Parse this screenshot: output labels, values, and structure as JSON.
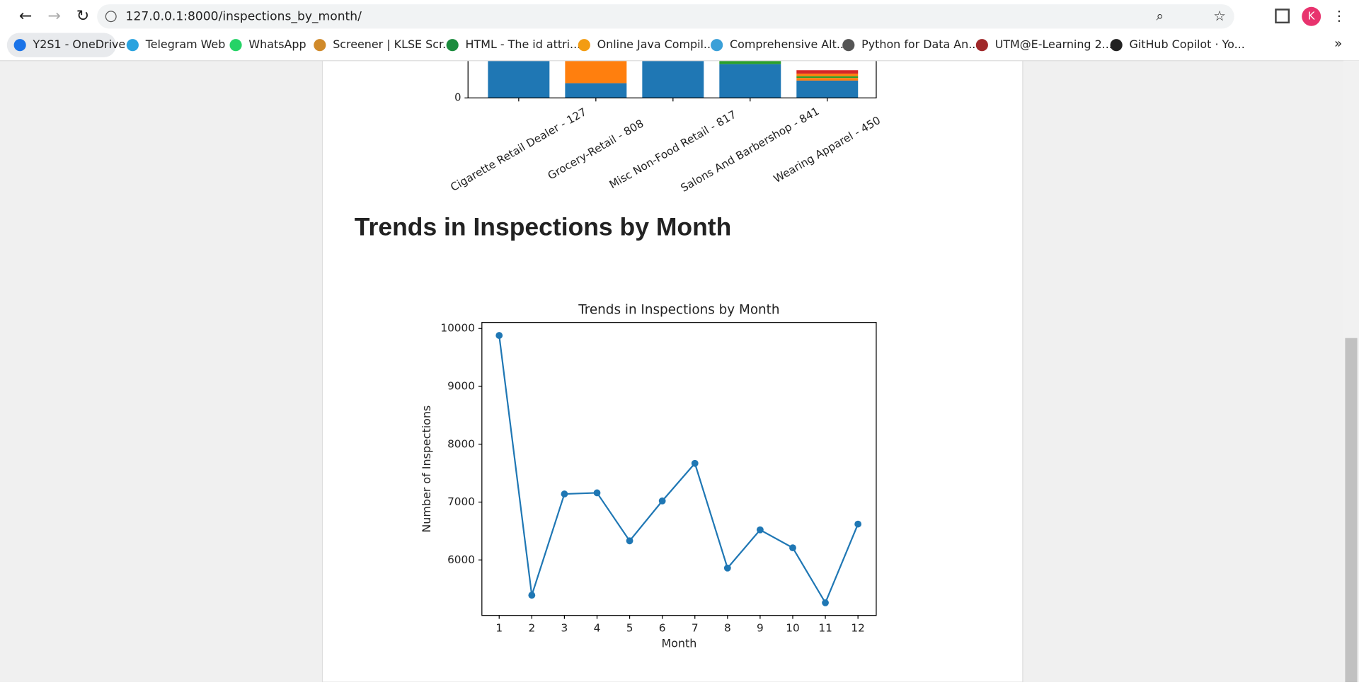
{
  "browser": {
    "url": "127.0.0.1:8000/inspections_by_month/",
    "bookmarks": [
      "Y2S1 - OneDrive",
      "Telegram Web",
      "WhatsApp",
      "Screener | KLSE Scr...",
      "HTML - The id attri...",
      "Online Java Compil...",
      "Comprehensive Alt...",
      "Python for Data An...",
      "UTM@E-Learning 2...",
      "GitHub Copilot · Yo..."
    ],
    "profile": "K",
    "overflow": "»"
  },
  "heading": "Trends in Inspections by Month",
  "chart_data": [
    {
      "type": "bar",
      "categories": [
        "Cigarette Retail Dealer - 127",
        "Grocery-Retail - 808",
        "Misc Non-Food Retail - 817",
        "Salons And Barbershop - 841",
        "Wearing Apparel - 450"
      ],
      "yticks": [
        0
      ]
    },
    {
      "type": "line",
      "title": "Trends in Inspections by Month",
      "x_label": "Month",
      "y_label": "Number of Inspections",
      "x": [
        1,
        2,
        3,
        4,
        5,
        6,
        7,
        8,
        9,
        10,
        11,
        12
      ],
      "series": [
        {
          "color": "#1f77b4",
          "values": [
            9880,
            5390,
            7140,
            7160,
            6330,
            7020,
            7670,
            5860,
            6520,
            6210,
            5260,
            6620
          ]
        }
      ],
      "xlim": [
        0.47,
        12.56
      ],
      "ylim": [
        5041,
        10105
      ],
      "xticks": [
        1,
        2,
        3,
        4,
        5,
        6,
        7,
        8,
        9,
        10,
        11,
        12
      ],
      "yticks": [
        6000,
        7000,
        8000,
        9000,
        10000
      ]
    }
  ]
}
